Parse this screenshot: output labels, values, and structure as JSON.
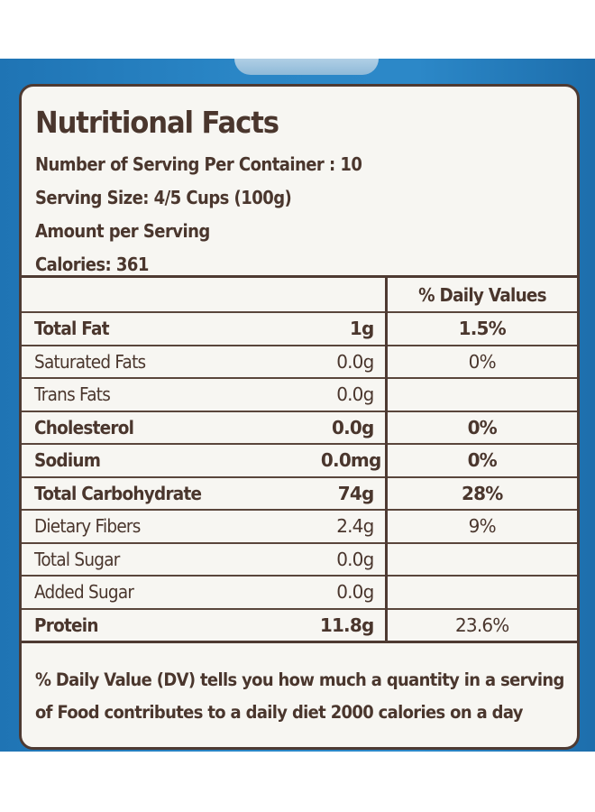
{
  "label": {
    "title": "Nutritional Facts",
    "servings_per_container": "Number of Serving Per Container : 10",
    "serving_size": "Serving Size: 4/5 Cups (100g)",
    "amount_per_serving": "Amount per Serving",
    "calories": "Calories: 361"
  },
  "table": {
    "dv_header": "% Daily Values",
    "rows": [
      {
        "name": "Total Fat",
        "amount": "1g",
        "dv": "1.5%"
      },
      {
        "name": "Saturated Fats",
        "amount": "0.0g",
        "dv": "0%"
      },
      {
        "name": "Trans Fats",
        "amount": "0.0g",
        "dv": ""
      },
      {
        "name": "Cholesterol",
        "amount": "0.0g",
        "dv": "0%"
      },
      {
        "name": "Sodium",
        "amount": "0.0mg",
        "dv": "0%"
      },
      {
        "name": "Total Carbohydrate",
        "amount": "74g",
        "dv": "28%"
      },
      {
        "name": "Dietary Fibers",
        "amount": "2.4g",
        "dv": "9%"
      },
      {
        "name": "Total Sugar",
        "amount": "0.0g",
        "dv": ""
      },
      {
        "name": "Added Sugar",
        "amount": "0.0g",
        "dv": ""
      },
      {
        "name": "Protein",
        "amount": "11.8g",
        "dv": "23.6%"
      }
    ]
  },
  "footer": {
    "line1": "% Daily Value (DV) tells you how much a quantity in a serving",
    "line2": "of Food contributes to a daily diet 2000 calories on a day"
  },
  "colors": {
    "packaging_blue": "#2a86c6",
    "label_background": "#f7f6f2",
    "ink_brown": "#4a362d"
  }
}
